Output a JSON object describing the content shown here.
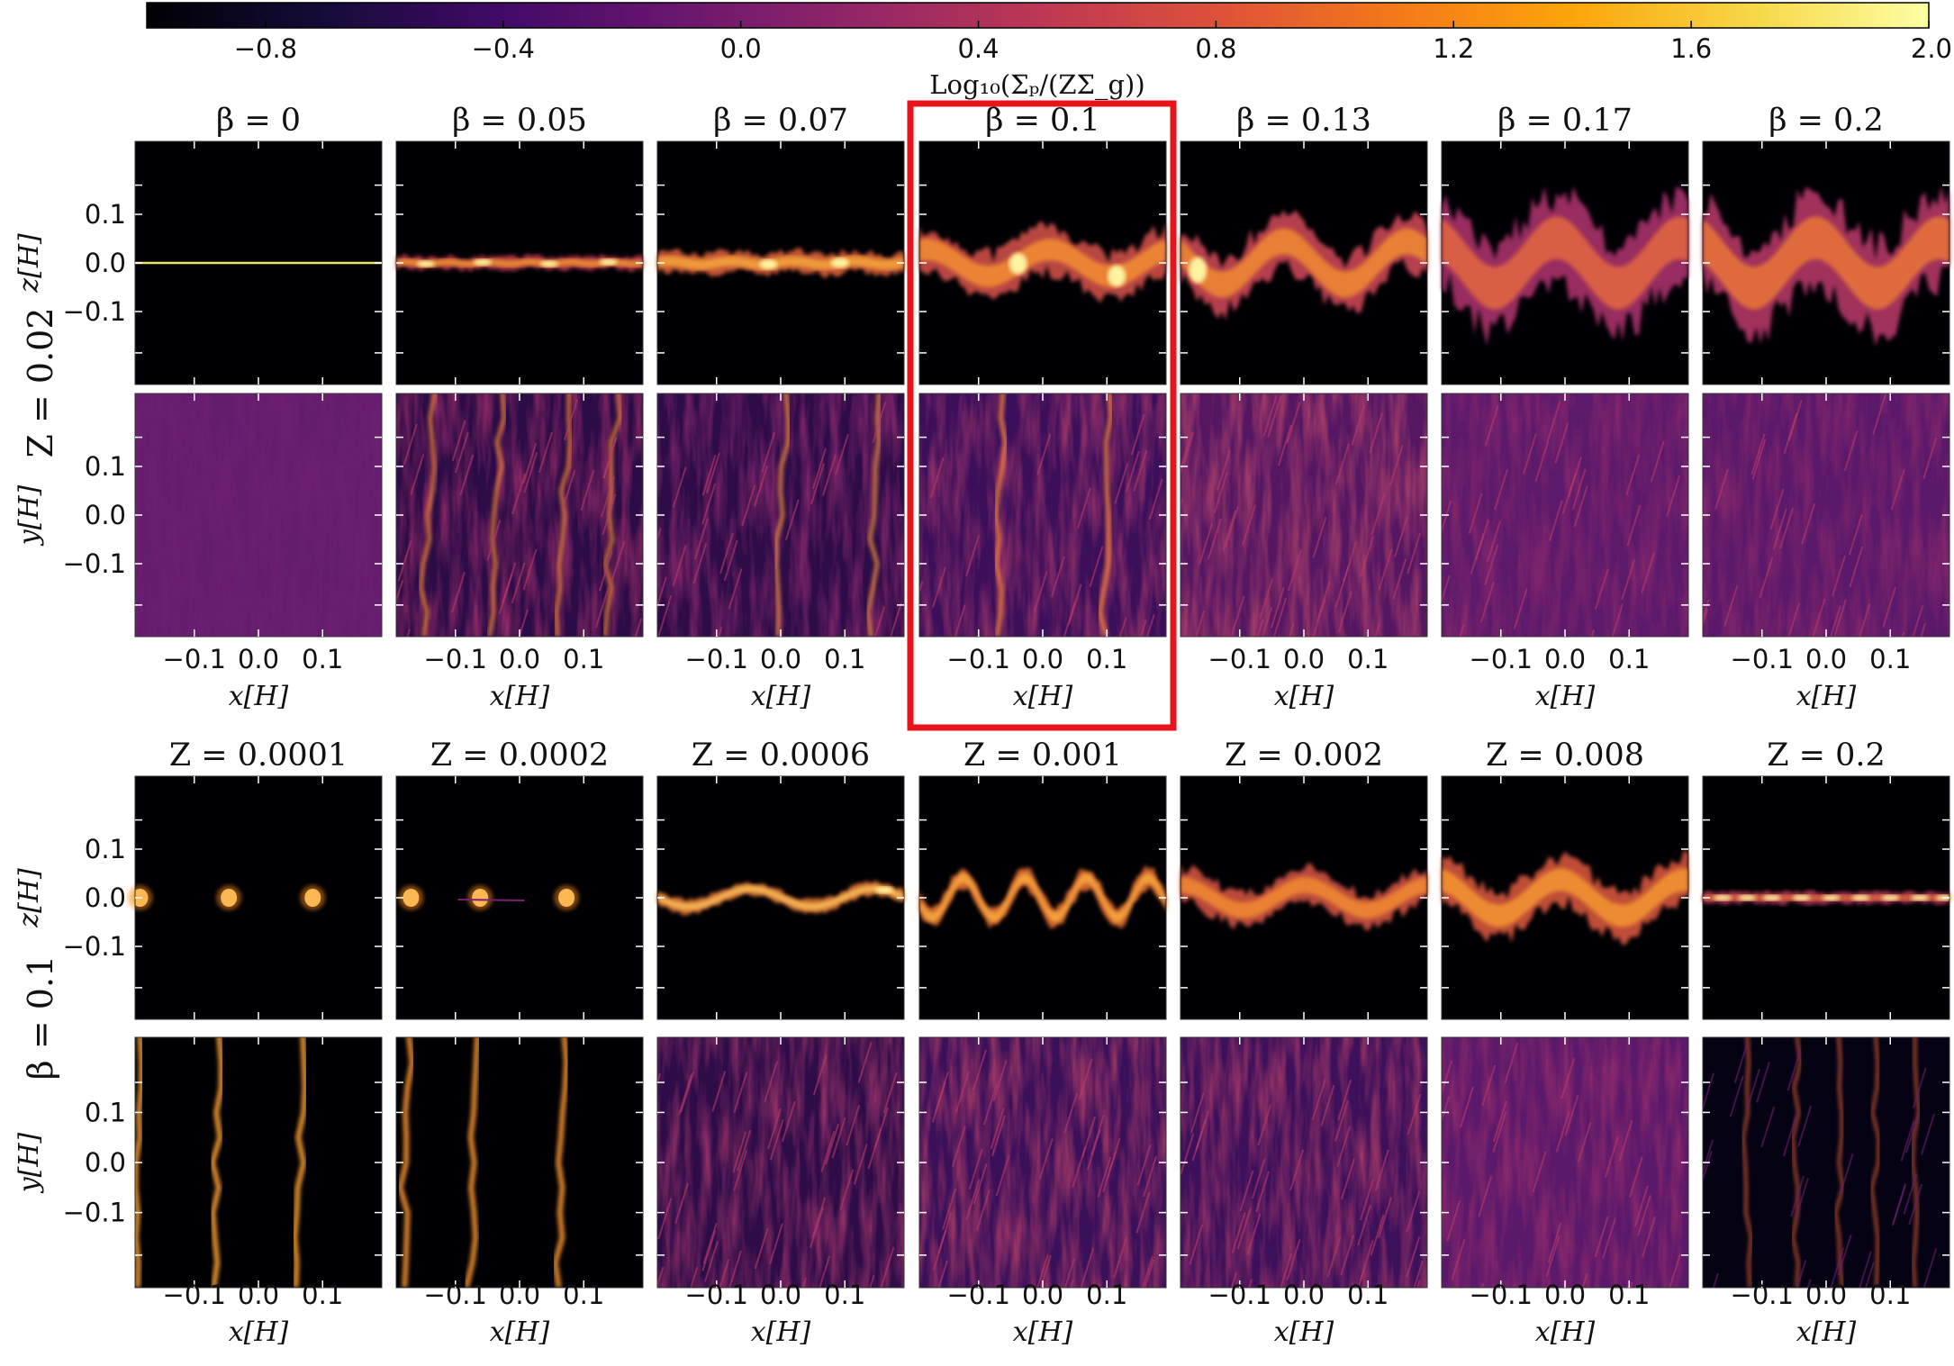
{
  "colorbar": {
    "label": "Log₁₀(Σₚ/(ZΣ_g))",
    "ticks": [
      "−0.8",
      "−0.4",
      "0.0",
      "0.4",
      "0.8",
      "1.2",
      "1.6",
      "2.0"
    ],
    "range": [
      -1.0,
      2.0
    ],
    "colormap": "inferno"
  },
  "chart_data": [
    {
      "type": "heatmap",
      "row_label": "Z = 0.02",
      "titles": [
        "β = 0",
        "β = 0.05",
        "β = 0.07",
        "β = 0.1",
        "β = 0.13",
        "β = 0.17",
        "β = 0.2"
      ],
      "panels": [
        "z-x side view",
        "y-x top view"
      ],
      "xlabel": "x[H]",
      "ylabel_top": "z[H]",
      "ylabel_bottom": "y[H]",
      "xticks": [
        "−0.1",
        "0.0",
        "0.1"
      ],
      "yticks": [
        "0.1",
        "0.0",
        "−0.1"
      ],
      "highlighted_column": "β = 0.1"
    },
    {
      "type": "heatmap",
      "row_label": "β = 0.1",
      "titles": [
        "Z = 0.0001",
        "Z = 0.0002",
        "Z = 0.0006",
        "Z = 0.001",
        "Z = 0.002",
        "Z = 0.008",
        "Z = 0.2"
      ],
      "panels": [
        "z-x side view",
        "y-x top view"
      ],
      "xlabel": "x[H]",
      "ylabel_top": "z[H]",
      "ylabel_bottom": "y[H]",
      "xticks": [
        "−0.1",
        "0.0",
        "0.1"
      ],
      "yticks": [
        "0.1",
        "0.0",
        "−0.1"
      ]
    }
  ],
  "colors": {
    "highlight": "#e8141b",
    "background": "#000004"
  }
}
